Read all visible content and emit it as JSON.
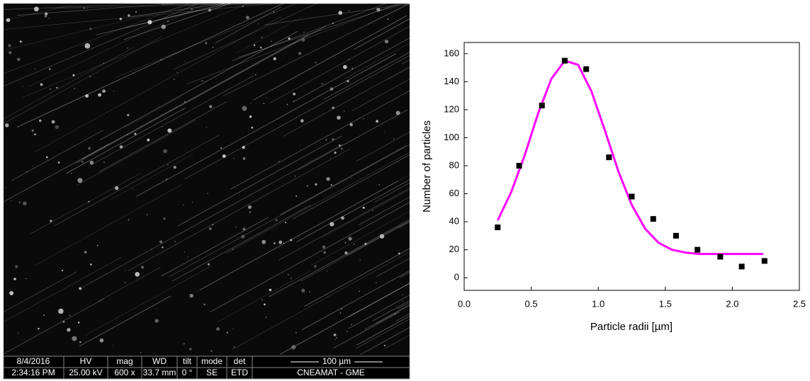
{
  "sem_image": {
    "info_bar": {
      "date": "8/4/2016",
      "time": "2:34:16 PM",
      "hv_label": "HV",
      "hv": "25.00 kV",
      "mag_label": "mag",
      "mag": "600 x",
      "wd_label": "WD",
      "wd": "33.7 mm",
      "tilt_label": "tilt",
      "tilt": "0 °",
      "mode_label": "mode",
      "mode": "SE",
      "det_label": "det",
      "det": "ETD",
      "scale": "100 µm",
      "lab": "CNEAMAT - GME"
    }
  },
  "chart_data": {
    "type": "scatter",
    "x_label": "Particle radii [µm]",
    "y_label": "Number of particles",
    "xlim": [
      0,
      2.5
    ],
    "ylim": [
      -9,
      168
    ],
    "xticks": [
      {
        "value": 0,
        "label": "0.0"
      },
      {
        "value": 0.5,
        "label": "0.5"
      },
      {
        "value": 1,
        "label": "1.0"
      },
      {
        "value": 1.5,
        "label": "1.5"
      },
      {
        "value": 2,
        "label": "2.0"
      },
      {
        "value": 2.5,
        "label": "2.5"
      }
    ],
    "yticks": [
      0,
      20,
      40,
      60,
      80,
      100,
      120,
      140,
      160
    ],
    "series": [
      {
        "type": "scatter",
        "color": "#000000",
        "x": [
          0.25,
          0.41,
          0.58,
          0.75,
          0.91,
          1.08,
          1.25,
          1.41,
          1.58,
          1.74,
          1.91,
          2.07,
          2.24
        ],
        "values": [
          36,
          80,
          123,
          155,
          149,
          86,
          58,
          42,
          30,
          20,
          15,
          8,
          12
        ]
      },
      {
        "type": "line",
        "color": "#ff00ff",
        "x": [
          0.25,
          0.35,
          0.45,
          0.55,
          0.65,
          0.75,
          0.85,
          0.95,
          1.05,
          1.15,
          1.25,
          1.35,
          1.45,
          1.55,
          1.65,
          1.75,
          1.85,
          1.95,
          2.05,
          2.15,
          2.23
        ],
        "values": [
          41,
          61,
          87,
          117,
          142,
          155,
          152,
          133,
          105,
          76,
          52,
          35,
          25,
          20,
          18,
          17,
          17,
          17,
          17,
          17,
          17
        ]
      }
    ]
  }
}
